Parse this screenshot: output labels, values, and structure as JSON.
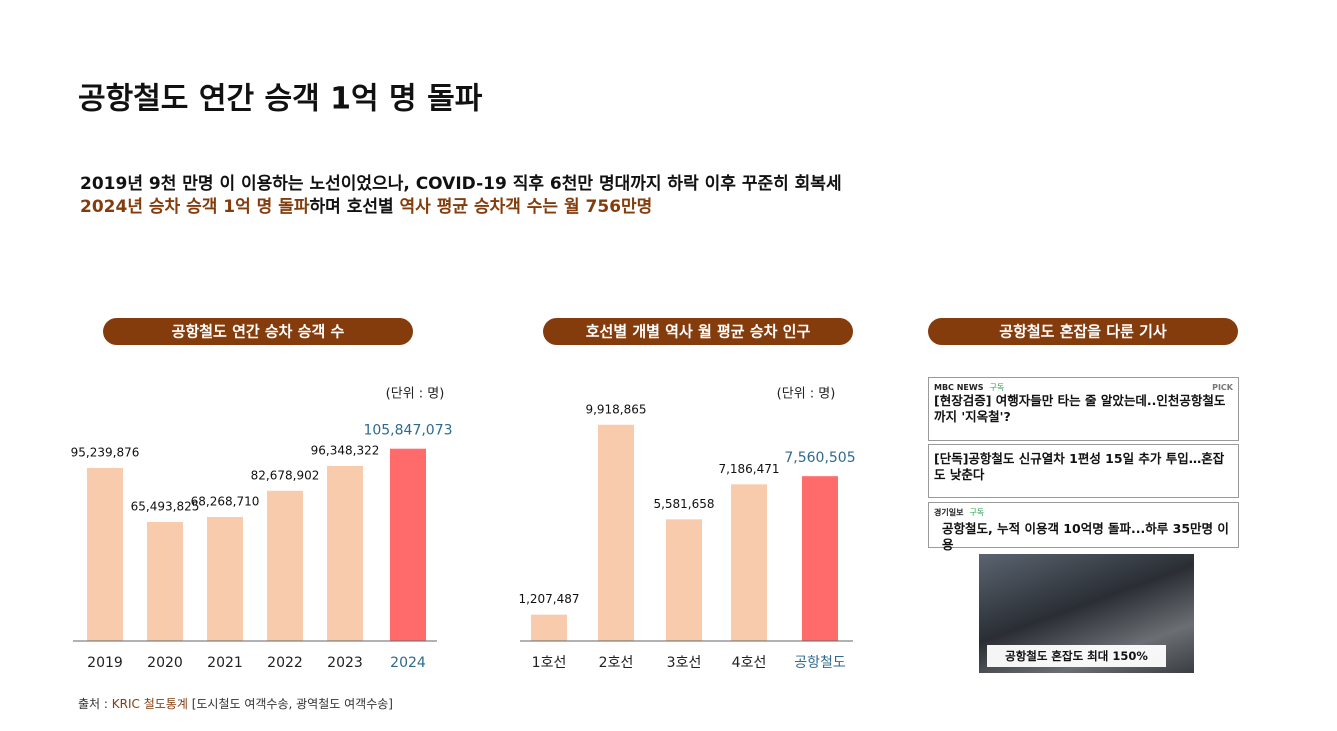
{
  "title": "공항철도 연간 승객 1억 명 돌파",
  "summary": {
    "line1": [
      {
        "text": "2019년 9천 만명 이 이용하는 노선이었으나, COVID-19 직후  6천만 명대까지 하락  이후 꾸준히 회복세",
        "color": "#111111"
      }
    ],
    "line2": [
      {
        "text": "2024년 승차 승객 1억 명 돌파",
        "color": "#843c0c"
      },
      {
        "text": "하며 호선별 ",
        "color": "#111111"
      },
      {
        "text": "역사 평균 승차객 수는 월 756만명",
        "color": "#843c0c"
      }
    ]
  },
  "chart_data": [
    {
      "type": "bar",
      "title": "공항철도 연간 승차 승객 수",
      "unit_label": "(단위 : 명)",
      "categories": [
        "2019",
        "2020",
        "2021",
        "2022",
        "2023",
        "2024"
      ],
      "values": [
        95239876,
        65493825,
        68268710,
        82678902,
        96348322,
        105847073
      ],
      "value_labels": [
        "95,239,876",
        "65,493,825",
        "68,268,710",
        "82,678,902",
        "96,348,322",
        "105,847,073"
      ],
      "colors": [
        "#f8cbad",
        "#f8cbad",
        "#f8cbad",
        "#f8cbad",
        "#f8cbad",
        "#ff6b6b"
      ],
      "ylim": [
        0,
        120000000
      ]
    },
    {
      "type": "bar",
      "title": "호선별 개별 역사 월 평균 승차 인구",
      "unit_label": "(단위 : 명)",
      "categories": [
        "1호선",
        "2호선",
        "3호선",
        "4호선",
        "공항철도"
      ],
      "values": [
        1207487,
        9918865,
        5581658,
        7186471,
        7560505
      ],
      "value_labels": [
        "1,207,487",
        "9,918,865",
        "5,581,658",
        "7,186,471",
        "7,560,505"
      ],
      "colors": [
        "#f8cbad",
        "#f8cbad",
        "#f8cbad",
        "#f8cbad",
        "#ff6b6b"
      ],
      "ylim": [
        0,
        10000000
      ]
    }
  ],
  "news": {
    "title": "공항철도 혼잡을 다룬 기사",
    "articles": [
      {
        "source": "MBC NEWS",
        "subscribe": "구독",
        "badge": "PICK",
        "headline": "[현장검증] 여행자들만 타는 줄 알았는데..인천공항철도까지 '지옥철'?"
      },
      {
        "headline": "[단독]공항철도 신규열차 1편성 15일 추가 투입…혼잡도 낮춘다"
      },
      {
        "source": "경기일보",
        "subscribe": "구독",
        "headline": "공항철도, 누적 이용객 10억명 돌파...하루 35만명 이용"
      }
    ],
    "photo_caption": "공항철도 혼잡도 최대 150%"
  },
  "source_note": [
    {
      "text": "출처 : ",
      "color": "#333333"
    },
    {
      "text": "KRIC 철도통계",
      "color": "#843c0c"
    },
    {
      "text": " [도시철도 여객수송, 광역철도 여객수송]",
      "color": "#333333"
    }
  ]
}
